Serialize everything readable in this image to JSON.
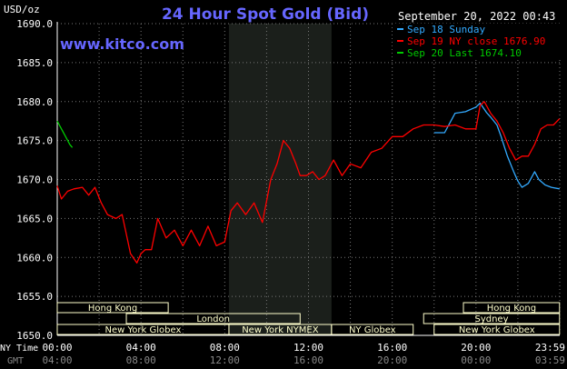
{
  "chart_data": {
    "type": "line",
    "title": "24 Hour Spot Gold (Bid)",
    "source": "www.kitco.com",
    "timestamp": "September 20, 2022 00:43",
    "yunit": "USD/oz",
    "ylim": [
      1650,
      1690
    ],
    "yticks": [
      "1690.0",
      "1685.0",
      "1680.0",
      "1675.0",
      "1670.0",
      "1665.0",
      "1660.0",
      "1655.0",
      "1650.0"
    ],
    "x_row1_label": "NY Time",
    "x_row2_label": "GMT",
    "x_ticks_ny": [
      "00:00",
      "04:00",
      "08:00",
      "12:00",
      "16:00",
      "20:00",
      "23:59"
    ],
    "x_ticks_gmt": [
      "04:00",
      "08:00",
      "12:00",
      "16:00",
      "20:00",
      "00:00",
      "03:59"
    ],
    "grid": true,
    "colors": {
      "sep18": "#33aaff",
      "sep19": "#ff0000",
      "sep20": "#00cc00",
      "title": "#6666ff",
      "axis": "#ffffff",
      "sessions": "#ffffcc"
    },
    "legend": [
      {
        "label": "Sep 18 Sunday",
        "color": "#33aaff"
      },
      {
        "label": "Sep 19 NY close 1676.90",
        "color": "#ff0000"
      },
      {
        "label": "Sep 20 Last 1674.10",
        "color": "#00cc00"
      }
    ],
    "series": [
      {
        "name": "Sep 18 Sunday",
        "x_hours": [
          18.0,
          18.5,
          19.0,
          19.5,
          20.0,
          20.2,
          20.5,
          20.7,
          21.0,
          21.2,
          21.5,
          21.8,
          22.0,
          22.2,
          22.5,
          22.8,
          23.0,
          23.3,
          23.6,
          23.99
        ],
        "values": [
          1676.0,
          1676.0,
          1678.5,
          1678.7,
          1679.3,
          1679.8,
          1678.6,
          1678.0,
          1677.0,
          1675.5,
          1673.0,
          1671.0,
          1669.8,
          1669.0,
          1669.5,
          1671.0,
          1670.0,
          1669.3,
          1669.0,
          1668.8
        ]
      },
      {
        "name": "Sep 19 NY close 1676.90",
        "x_hours": [
          0.0,
          0.2,
          0.5,
          0.8,
          1.2,
          1.5,
          1.8,
          2.1,
          2.4,
          2.8,
          3.1,
          3.3,
          3.5,
          3.8,
          4.0,
          4.2,
          4.5,
          4.8,
          5.2,
          5.6,
          6.0,
          6.4,
          6.8,
          7.2,
          7.6,
          8.0,
          8.3,
          8.6,
          9.0,
          9.4,
          9.8,
          10.2,
          10.5,
          10.8,
          11.1,
          11.4,
          11.6,
          11.9,
          12.2,
          12.5,
          12.8,
          13.2,
          13.6,
          14.0,
          14.5,
          15.0,
          15.5,
          16.0,
          16.5,
          17.0,
          17.5,
          18.0,
          18.5,
          19.0,
          19.5,
          20.0,
          20.2,
          20.4,
          20.7,
          21.0,
          21.3,
          21.6,
          21.9,
          22.2,
          22.5,
          22.8,
          23.1,
          23.4,
          23.7,
          23.99
        ],
        "values": [
          1669.2,
          1667.5,
          1668.5,
          1668.8,
          1669.0,
          1668.0,
          1669.0,
          1667.0,
          1665.5,
          1665.0,
          1665.5,
          1663.0,
          1660.5,
          1659.3,
          1660.5,
          1661.0,
          1661.0,
          1665.0,
          1662.5,
          1663.5,
          1661.5,
          1663.5,
          1661.5,
          1664.0,
          1661.5,
          1662.0,
          1666.0,
          1667.0,
          1665.5,
          1667.0,
          1664.5,
          1670.0,
          1672.0,
          1675.0,
          1674.0,
          1672.0,
          1670.5,
          1670.5,
          1671.0,
          1670.0,
          1670.5,
          1672.5,
          1670.5,
          1672.0,
          1671.5,
          1673.5,
          1674.0,
          1675.5,
          1675.5,
          1676.5,
          1677.0,
          1677.0,
          1676.8,
          1677.0,
          1676.5,
          1676.5,
          1679.5,
          1680.0,
          1678.5,
          1677.5,
          1676.0,
          1674.0,
          1672.5,
          1673.0,
          1673.0,
          1674.5,
          1676.5,
          1677.0,
          1677.0,
          1677.8
        ]
      },
      {
        "name": "Sep 20 Last 1674.10",
        "x_hours": [
          0.0,
          0.2,
          0.4,
          0.6,
          0.72
        ],
        "values": [
          1677.5,
          1676.5,
          1675.5,
          1674.5,
          1674.1
        ]
      }
    ],
    "highlight_hours": [
      8.2,
      13.1
    ],
    "sessions": [
      {
        "label": "Hong Kong",
        "row": 1,
        "start": 0.0,
        "end": 5.3
      },
      {
        "label": "Hong Kong",
        "row": 1,
        "start": 19.4,
        "end": 23.99
      },
      {
        "label": "London",
        "row": 2,
        "start": 3.3,
        "end": 11.6
      },
      {
        "label": "Sydney",
        "row": 2,
        "start": 17.5,
        "end": 23.99
      },
      {
        "label": "New York Globex",
        "row": 3,
        "start": 0.0,
        "end": 8.2
      },
      {
        "label": "New York NYMEX",
        "row": 3,
        "start": 8.2,
        "end": 13.1
      },
      {
        "label": "NY Globex",
        "row": 3,
        "start": 13.1,
        "end": 17.0
      },
      {
        "label": "New York Globex",
        "row": 3,
        "start": 18.0,
        "end": 23.99
      }
    ]
  }
}
